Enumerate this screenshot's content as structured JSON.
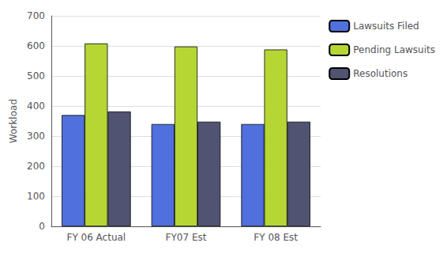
{
  "chart_data": {
    "type": "bar",
    "categories": [
      "FY 06 Actual",
      "FY07 Est",
      "FY 08 Est"
    ],
    "series": [
      {
        "name": "Lawsuits Filed",
        "values": [
          370,
          340,
          340
        ]
      },
      {
        "name": "Pending Lawsuits",
        "values": [
          608,
          598,
          588
        ]
      },
      {
        "name": "Resolutions",
        "values": [
          382,
          348,
          348
        ]
      }
    ],
    "ylabel": "Workload",
    "ylim": [
      0,
      700
    ],
    "yticks": [
      0,
      100,
      200,
      300,
      400,
      500,
      600,
      700
    ],
    "grid": true,
    "legend": "right"
  }
}
